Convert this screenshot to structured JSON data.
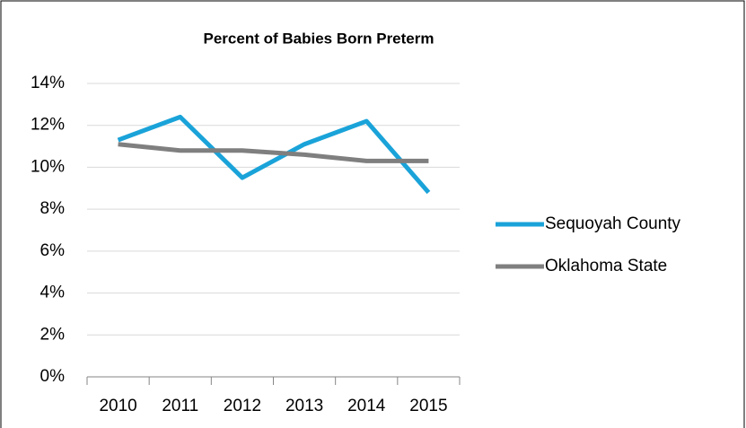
{
  "chart_data": {
    "type": "line",
    "title": "Percent of Babies Born Preterm",
    "categories": [
      "2010",
      "2011",
      "2012",
      "2013",
      "2014",
      "2015"
    ],
    "series": [
      {
        "name": "Sequoyah County",
        "color": "#1aa3d9",
        "values": [
          11.3,
          12.4,
          9.5,
          11.1,
          12.2,
          8.8
        ]
      },
      {
        "name": "Oklahoma State",
        "color": "#7f7f7f",
        "values": [
          11.1,
          10.8,
          10.8,
          10.6,
          10.3,
          10.3
        ]
      }
    ],
    "ylim": [
      0,
      14
    ],
    "yticks": [
      {
        "value": 0,
        "label": "0%"
      },
      {
        "value": 2,
        "label": "2%"
      },
      {
        "value": 4,
        "label": "4%"
      },
      {
        "value": 6,
        "label": "6%"
      },
      {
        "value": 8,
        "label": "8%"
      },
      {
        "value": 10,
        "label": "10%"
      },
      {
        "value": 12,
        "label": "12%"
      },
      {
        "value": 14,
        "label": "14%"
      }
    ],
    "grid": true,
    "legend": "right"
  }
}
